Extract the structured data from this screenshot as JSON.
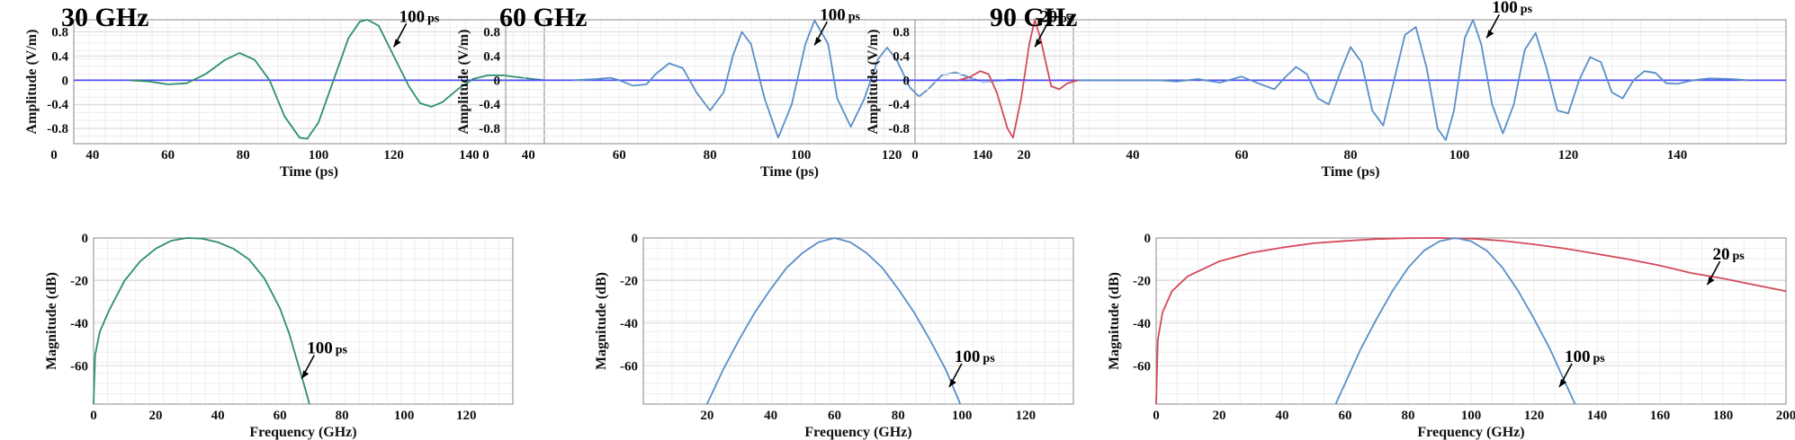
{
  "colors": {
    "red": "#d44a5a",
    "green": "#2e8f6e",
    "blue": "#5a8fc8",
    "zero_line": "#4a4aff",
    "grid_major": "#d9d9d9",
    "grid_minor": "#eeeeee"
  },
  "chart_data": [
    {
      "id": "p1",
      "type": "line",
      "title": "30  GHz",
      "xlabel": "Time (ps)",
      "ylabel": "Amplitude (V/m)",
      "xlim": [
        35,
        160
      ],
      "ylim": [
        -1.05,
        1.0
      ],
      "xticks": [
        "0",
        "40",
        "60",
        "80",
        "100",
        "120",
        "140"
      ],
      "yticks": [
        "0.8",
        "0.4",
        "0",
        "-0.4",
        "-0.8"
      ],
      "series": [
        {
          "color": "green",
          "points": [
            [
              50,
              0
            ],
            [
              55,
              -0.02
            ],
            [
              60,
              -0.07
            ],
            [
              65,
              -0.05
            ],
            [
              70,
              0.1
            ],
            [
              75,
              0.33
            ],
            [
              79,
              0.45
            ],
            [
              83,
              0.34
            ],
            [
              87,
              0
            ],
            [
              91,
              -0.6
            ],
            [
              95,
              -0.95
            ],
            [
              97,
              -0.97
            ],
            [
              100,
              -0.7
            ],
            [
              104,
              0
            ],
            [
              108,
              0.7
            ],
            [
              111,
              0.97
            ],
            [
              113,
              1.0
            ],
            [
              116,
              0.9
            ],
            [
              120,
              0.4
            ],
            [
              124,
              -0.1
            ],
            [
              127,
              -0.38
            ],
            [
              130,
              -0.44
            ],
            [
              133,
              -0.36
            ],
            [
              137,
              -0.15
            ],
            [
              141,
              0.02
            ],
            [
              145,
              0.08
            ],
            [
              149,
              0.08
            ],
            [
              153,
              0.05
            ],
            [
              157,
              0.02
            ],
            [
              160,
              0
            ]
          ]
        }
      ],
      "annotations": [
        {
          "num": "100",
          "unit": "ps",
          "at": [
            120,
            0.55
          ]
        }
      ]
    },
    {
      "id": "p2",
      "type": "line",
      "title": "60  GHz",
      "xlabel": "Time (ps)",
      "ylabel": "Amplitude (V/m)",
      "xlim": [
        35,
        160
      ],
      "ylim": [
        -1.05,
        1.0
      ],
      "xticks": [
        "0",
        "40",
        "60",
        "80",
        "100",
        "120",
        "140"
      ],
      "yticks": [
        "0.8",
        "0.4",
        "0",
        "-0.4",
        "-0.8"
      ],
      "series": [
        {
          "color": "blue",
          "points": [
            [
              50,
              0
            ],
            [
              55,
              0.02
            ],
            [
              58,
              0.04
            ],
            [
              60,
              0
            ],
            [
              63,
              -0.09
            ],
            [
              66,
              -0.07
            ],
            [
              68,
              0.1
            ],
            [
              71,
              0.28
            ],
            [
              74,
              0.2
            ],
            [
              77,
              -0.2
            ],
            [
              80,
              -0.5
            ],
            [
              83,
              -0.2
            ],
            [
              85,
              0.4
            ],
            [
              87,
              0.8
            ],
            [
              89,
              0.6
            ],
            [
              92,
              -0.3
            ],
            [
              95,
              -0.95
            ],
            [
              98,
              -0.4
            ],
            [
              101,
              0.6
            ],
            [
              103,
              0.99
            ],
            [
              106,
              0.6
            ],
            [
              108,
              -0.3
            ],
            [
              111,
              -0.77
            ],
            [
              114,
              -0.3
            ],
            [
              117,
              0.35
            ],
            [
              119,
              0.54
            ],
            [
              121,
              0.35
            ],
            [
              124,
              -0.12
            ],
            [
              126,
              -0.27
            ],
            [
              128,
              -0.15
            ],
            [
              131,
              0.08
            ],
            [
              134,
              0.13
            ],
            [
              137,
              0.05
            ],
            [
              140,
              -0.03
            ],
            [
              143,
              -0.02
            ],
            [
              146,
              0.01
            ],
            [
              150,
              0
            ]
          ]
        }
      ],
      "annotations": [
        {
          "num": "100",
          "unit": "ps",
          "at": [
            103,
            0.58
          ]
        }
      ]
    },
    {
      "id": "p3",
      "type": "line",
      "title": "90  GHz",
      "xlabel": "Time (ps)",
      "ylabel": "Amplitude (V/m)",
      "xlim": [
        0,
        160
      ],
      "ylim": [
        -1.05,
        1.0
      ],
      "xticks": [
        "0",
        "20",
        "40",
        "60",
        "80",
        "100",
        "120",
        "140"
      ],
      "yticks": [
        "0.8",
        "0.4",
        "0",
        "-0.4",
        "-0.8"
      ],
      "series": [
        {
          "color": "red",
          "points": [
            [
              8,
              0
            ],
            [
              10,
              0.05
            ],
            [
              12,
              0.15
            ],
            [
              13.5,
              0.1
            ],
            [
              15,
              -0.2
            ],
            [
              17,
              -0.8
            ],
            [
              18,
              -0.95
            ],
            [
              19.5,
              -0.3
            ],
            [
              21,
              0.6
            ],
            [
              22,
              1.0
            ],
            [
              23,
              0.7
            ],
            [
              25,
              -0.1
            ],
            [
              26.5,
              -0.15
            ],
            [
              28,
              -0.05
            ],
            [
              30,
              0
            ]
          ]
        },
        {
          "color": "blue",
          "points": [
            [
              30,
              0
            ],
            [
              40,
              0
            ],
            [
              45,
              0
            ],
            [
              48,
              -0.02
            ],
            [
              52,
              0.02
            ],
            [
              56,
              -0.04
            ],
            [
              60,
              0.06
            ],
            [
              63,
              -0.05
            ],
            [
              66,
              -0.15
            ],
            [
              68,
              0.05
            ],
            [
              70,
              0.22
            ],
            [
              72,
              0.1
            ],
            [
              74,
              -0.3
            ],
            [
              76,
              -0.4
            ],
            [
              78,
              0.1
            ],
            [
              80,
              0.55
            ],
            [
              82,
              0.3
            ],
            [
              84,
              -0.5
            ],
            [
              86,
              -0.75
            ],
            [
              88,
              0
            ],
            [
              90,
              0.75
            ],
            [
              92,
              0.88
            ],
            [
              94,
              0.2
            ],
            [
              96,
              -0.8
            ],
            [
              97.5,
              -0.99
            ],
            [
              99,
              -0.5
            ],
            [
              101,
              0.7
            ],
            [
              102.5,
              1.0
            ],
            [
              104,
              0.6
            ],
            [
              106,
              -0.4
            ],
            [
              108,
              -0.88
            ],
            [
              110,
              -0.4
            ],
            [
              112,
              0.5
            ],
            [
              114,
              0.78
            ],
            [
              116,
              0.2
            ],
            [
              118,
              -0.5
            ],
            [
              120,
              -0.55
            ],
            [
              122,
              0
            ],
            [
              124,
              0.38
            ],
            [
              126,
              0.3
            ],
            [
              128,
              -0.2
            ],
            [
              130,
              -0.3
            ],
            [
              132,
              0
            ],
            [
              134,
              0.15
            ],
            [
              136,
              0.12
            ],
            [
              138,
              -0.05
            ],
            [
              140,
              -0.06
            ],
            [
              143,
              0
            ],
            [
              146,
              0.03
            ],
            [
              150,
              0.02
            ],
            [
              153,
              0
            ]
          ]
        }
      ],
      "annotations": [
        {
          "num": "20",
          "unit": "ps",
          "at": [
            22,
            0.55
          ]
        },
        {
          "num": "100",
          "unit": "ps",
          "at": [
            105,
            0.7
          ]
        }
      ]
    },
    {
      "id": "p4",
      "type": "line",
      "title": "",
      "xlabel": "Frequency (GHz)",
      "ylabel": "Magnitude (dB)",
      "xlim": [
        0,
        135
      ],
      "ylim": [
        -78,
        0
      ],
      "xticks": [
        "0",
        "20",
        "40",
        "60",
        "80",
        "100",
        "120"
      ],
      "yticks": [
        "0",
        "-20",
        "-40",
        "-60"
      ],
      "series": [
        {
          "color": "green",
          "points": [
            [
              0,
              -78
            ],
            [
              0.5,
              -55
            ],
            [
              2,
              -44
            ],
            [
              5,
              -34
            ],
            [
              10,
              -20
            ],
            [
              15,
              -11
            ],
            [
              20,
              -5
            ],
            [
              25,
              -1.3
            ],
            [
              30,
              0
            ],
            [
              35,
              -0.3
            ],
            [
              40,
              -2
            ],
            [
              45,
              -5
            ],
            [
              50,
              -10
            ],
            [
              55,
              -19
            ],
            [
              60,
              -33
            ],
            [
              63,
              -45
            ],
            [
              66,
              -60
            ],
            [
              68,
              -70
            ],
            [
              69.5,
              -78
            ]
          ]
        }
      ],
      "annotations": [
        {
          "num": "100",
          "unit": "ps",
          "at": [
            67,
            -66
          ]
        }
      ]
    },
    {
      "id": "p5",
      "type": "line",
      "title": "",
      "xlabel": "Frequency (GHz)",
      "ylabel": "Magnitude (dB)",
      "xlim": [
        0,
        135
      ],
      "ylim": [
        -78,
        0
      ],
      "xticks": [
        "20",
        "40",
        "60",
        "80",
        "100",
        "120"
      ],
      "yticks": [
        "0",
        "-20",
        "-40",
        "-60"
      ],
      "series": [
        {
          "color": "blue",
          "points": [
            [
              20,
              -78
            ],
            [
              25,
              -62
            ],
            [
              30,
              -48
            ],
            [
              35,
              -35
            ],
            [
              40,
              -24
            ],
            [
              45,
              -14
            ],
            [
              50,
              -7
            ],
            [
              55,
              -2
            ],
            [
              60,
              0
            ],
            [
              65,
              -2
            ],
            [
              70,
              -7
            ],
            [
              75,
              -14
            ],
            [
              80,
              -24
            ],
            [
              85,
              -35
            ],
            [
              90,
              -48
            ],
            [
              95,
              -62
            ],
            [
              99.5,
              -78
            ]
          ]
        }
      ],
      "annotations": [
        {
          "num": "100",
          "unit": "ps",
          "at": [
            96,
            -70
          ]
        }
      ]
    },
    {
      "id": "p6",
      "type": "line",
      "title": "",
      "xlabel": "Frequency (GHz)",
      "ylabel": "Magnitude (dB)",
      "xlim": [
        0,
        200
      ],
      "ylim": [
        -78,
        0
      ],
      "xticks": [
        "0",
        "20",
        "40",
        "60",
        "80",
        "100",
        "120",
        "140",
        "160",
        "180",
        "200"
      ],
      "yticks": [
        "0",
        "-20",
        "-40",
        "-60"
      ],
      "series": [
        {
          "color": "red",
          "points": [
            [
              0,
              -78
            ],
            [
              0.5,
              -48
            ],
            [
              2,
              -35
            ],
            [
              5,
              -25
            ],
            [
              10,
              -18
            ],
            [
              20,
              -11
            ],
            [
              30,
              -7
            ],
            [
              40,
              -4.5
            ],
            [
              50,
              -2.5
            ],
            [
              60,
              -1.4
            ],
            [
              70,
              -0.5
            ],
            [
              80,
              -0.1
            ],
            [
              90,
              0
            ],
            [
              100,
              -0.3
            ],
            [
              110,
              -1.3
            ],
            [
              120,
              -3
            ],
            [
              130,
              -5
            ],
            [
              140,
              -7.5
            ],
            [
              150,
              -10
            ],
            [
              160,
              -13
            ],
            [
              170,
              -16.5
            ],
            [
              180,
              -19
            ],
            [
              190,
              -22
            ],
            [
              200,
              -25
            ]
          ]
        },
        {
          "color": "blue",
          "points": [
            [
              57,
              -78
            ],
            [
              65,
              -52
            ],
            [
              70,
              -38
            ],
            [
              75,
              -25
            ],
            [
              80,
              -14
            ],
            [
              85,
              -6
            ],
            [
              90,
              -1.5
            ],
            [
              95,
              0
            ],
            [
              100,
              -1.5
            ],
            [
              105,
              -6
            ],
            [
              110,
              -14
            ],
            [
              115,
              -25
            ],
            [
              120,
              -38
            ],
            [
              125,
              -52
            ],
            [
              133,
              -78
            ]
          ]
        }
      ],
      "annotations": [
        {
          "num": "20",
          "unit": "ps",
          "at": [
            175,
            -22
          ]
        },
        {
          "num": "100",
          "unit": "ps",
          "at": [
            128,
            -70
          ]
        }
      ]
    }
  ]
}
